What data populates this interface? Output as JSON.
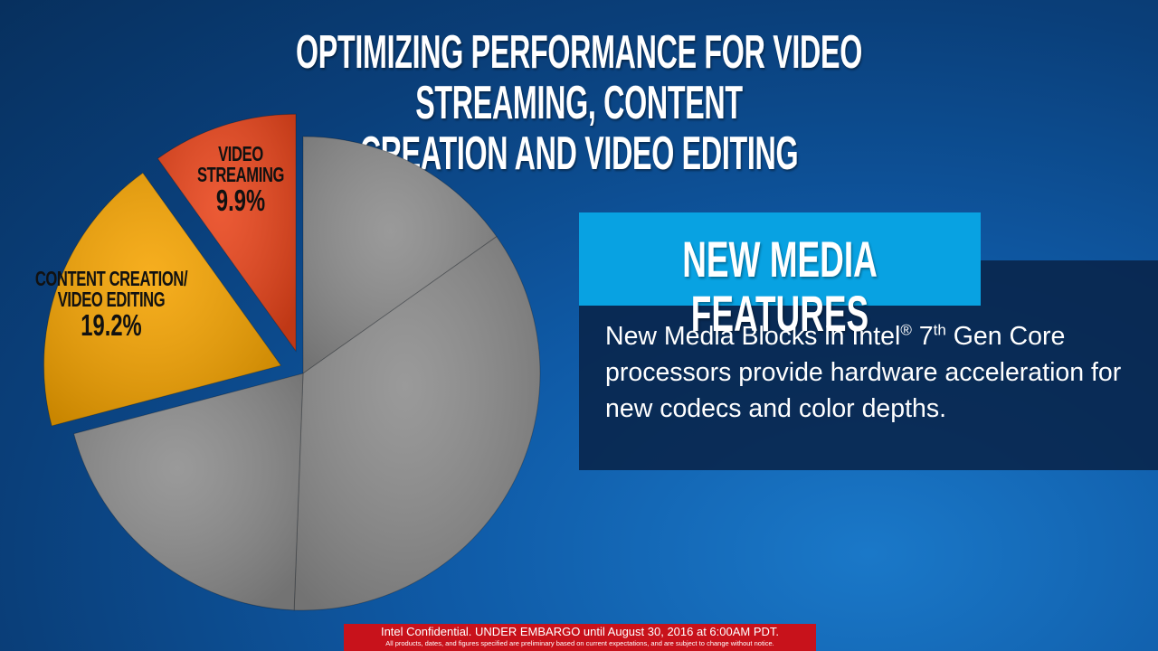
{
  "title": "OPTIMIZING PERFORMANCE FOR VIDEO STREAMING, CONTENT\nCREATION AND VIDEO EDITING",
  "chart_data": {
    "type": "pie",
    "categories": [
      null,
      null,
      null,
      "CONTENT CREATION/\nVIDEO EDITING",
      "VIDEO\nSTREAMING"
    ],
    "values": [
      15.2,
      35.4,
      20.3,
      19.2,
      9.9
    ],
    "value_labels": [
      null,
      null,
      null,
      "19.2%",
      "9.9%"
    ],
    "colors": [
      "#8c8c8c",
      "#8c8c8c",
      "#8c8c8c",
      "#f5a300",
      "#e9441a"
    ],
    "exploded": [
      false,
      false,
      false,
      true,
      true
    ]
  },
  "panel": {
    "heading": "NEW MEDIA FEATURES",
    "body": {
      "before": "New Media Blocks in Intel",
      "reg": "®",
      "mid": " 7",
      "sup": "th",
      "after": " Gen Core processors provide hardware acceleration for new codecs and color depths."
    }
  },
  "footer": {
    "line1": "Intel Confidential. UNDER EMBARGO until August 30, 2016 at 6:00AM PDT.",
    "line2": "All products, dates, and figures specified are preliminary based on current expectations, and are subject to change without notice."
  }
}
